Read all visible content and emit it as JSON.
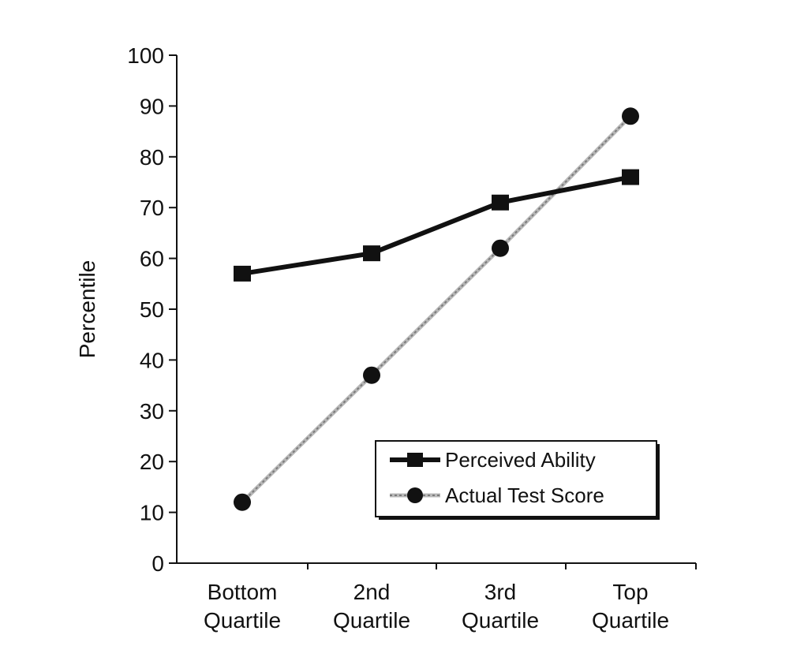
{
  "chart_data": {
    "type": "line",
    "title": "",
    "xlabel": "",
    "ylabel": "Percentile",
    "ylim": [
      0,
      100
    ],
    "yticks": [
      0,
      10,
      20,
      30,
      40,
      50,
      60,
      70,
      80,
      90,
      100
    ],
    "categories": [
      [
        "Bottom",
        "Quartile"
      ],
      [
        "2nd",
        "Quartile"
      ],
      [
        "3rd",
        "Quartile"
      ],
      [
        "Top",
        "Quartile"
      ]
    ],
    "series": [
      {
        "name": "Perceived Ability",
        "marker": "square",
        "line_style": "solid",
        "color": "#111111",
        "values": [
          57,
          61,
          71,
          76
        ]
      },
      {
        "name": "Actual Test Score",
        "marker": "circle",
        "line_style": "dotted-gray",
        "color": "#aaaaaa",
        "values": [
          12,
          37,
          62,
          88
        ]
      }
    ],
    "legend_position": "bottom-right",
    "grid": false
  }
}
